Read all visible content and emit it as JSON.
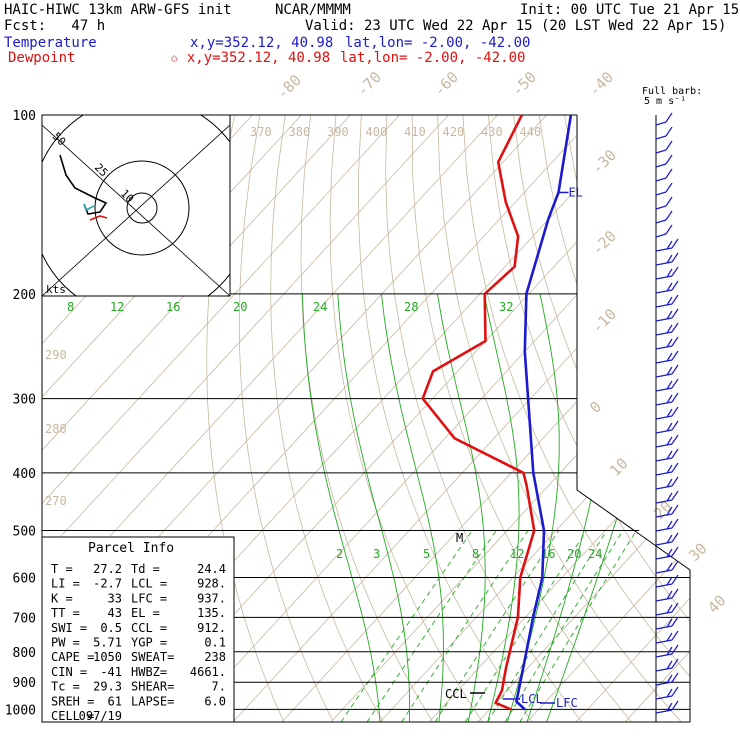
{
  "header": {
    "model": "HAIC-HIWC 13km ARW-GFS init",
    "center": "NCAR/MMMM",
    "init": "Init: 00 UTC Tue 21 Apr 15",
    "fcst": "Fcst:   47 h",
    "valid": "Valid: 23 UTC Wed 22 Apr 15 (20 LST Wed 22 Apr 15)",
    "temperature_label": "Temperature",
    "temperature_xy": "x,y=352.12, 40.98",
    "temperature_latlon": "lat,lon= -2.00, -42.00",
    "dewpoint_label": "Dewpoint",
    "dewpoint_xy": "✩ x,y=352.12, 40.98",
    "dewpoint_latlon": "lat,lon= -2.00, -42.00"
  },
  "barb_legend": [
    "Full barb:",
    "5 m s⁻¹"
  ],
  "hodograph": {
    "unit_label": "kts",
    "ring_labels": [
      "10",
      "25",
      "50"
    ]
  },
  "parcel_info": {
    "title": "Parcel Info",
    "rows": [
      [
        "T  =",
        "27.2",
        "Td =",
        "24.4"
      ],
      [
        "LI =",
        "-2.7",
        "LCL =",
        "928."
      ],
      [
        "K  =",
        "33",
        "LFC =",
        "937."
      ],
      [
        "TT =",
        "43",
        "EL  =",
        "135."
      ],
      [
        "SWI =",
        "0.5",
        "CCL =",
        "912."
      ],
      [
        "PW =",
        "5.71",
        "YGP =",
        "0.1"
      ],
      [
        "CAPE =",
        "1050",
        "SWEAT=",
        "238"
      ],
      [
        "CIN =",
        "-41",
        "HWBZ=",
        "4661."
      ],
      [
        "Tc =",
        "29.3",
        "SHEAR=",
        "7."
      ],
      [
        "SREH =",
        "61",
        "LAPSE=",
        "6.0"
      ],
      [
        "CELL =",
        "097/19",
        "",
        ""
      ]
    ]
  },
  "chart_data": {
    "type": "line",
    "diagram": "skew-T log-P",
    "pressure_ticks": [
      "100",
      "200",
      "300",
      "400",
      "500",
      "600",
      "700",
      "800",
      "900",
      "1000"
    ],
    "isotherm_labels": [
      "-80",
      "-70",
      "-60",
      "-50",
      "-40",
      "-30",
      "-20",
      "-10",
      "0",
      "10",
      "20",
      "30",
      "40"
    ],
    "theta_labels": [
      "370",
      "380",
      "390",
      "400",
      "410",
      "420",
      "430",
      "440"
    ],
    "theta_left_labels": [
      "290",
      "280",
      "270"
    ],
    "mixing_ratio_labels_top": [
      "8",
      "12",
      "16",
      "20",
      "24",
      "28",
      "32"
    ],
    "mixing_ratio_labels_mid": [
      "2",
      "3",
      "5",
      "8",
      "12",
      "16",
      "20",
      "24"
    ],
    "level_labels": [
      "EL",
      "CCL",
      "LCL",
      "LFC",
      "M"
    ],
    "series": [
      {
        "name": "Temperature",
        "color": "#1a1ad0",
        "points": [
          [
            1000,
            27.2
          ],
          [
            970,
            24.0
          ],
          [
            930,
            22.4
          ],
          [
            850,
            19.0
          ],
          [
            700,
            11.6
          ],
          [
            600,
            6.0
          ],
          [
            500,
            -2.5
          ],
          [
            400,
            -15.5
          ],
          [
            300,
            -30.5
          ],
          [
            250,
            -40.0
          ],
          [
            200,
            -50.5
          ],
          [
            150,
            -60.0
          ],
          [
            135,
            -63.0
          ],
          [
            100,
            -75.0
          ]
        ]
      },
      {
        "name": "Dewpoint",
        "color": "#e01010",
        "points": [
          [
            1000,
            24.4
          ],
          [
            975,
            20.0
          ],
          [
            930,
            19.0
          ],
          [
            850,
            15.5
          ],
          [
            700,
            8.5
          ],
          [
            600,
            1.5
          ],
          [
            500,
            -4.5
          ],
          [
            420,
            -14.5
          ],
          [
            400,
            -17.5
          ],
          [
            350,
            -38.0
          ],
          [
            300,
            -52.0
          ],
          [
            270,
            -55.0
          ],
          [
            240,
            -50.0
          ],
          [
            200,
            -59.0
          ],
          [
            180,
            -58.0
          ],
          [
            160,
            -63.0
          ],
          [
            140,
            -72.0
          ],
          [
            120,
            -81.0
          ],
          [
            100,
            -85.0
          ]
        ]
      }
    ]
  },
  "colors": {
    "temperature": "#1a1ad0",
    "dewpoint": "#e01010",
    "isotherm": "#c8b8a0",
    "mixing_ratio": "#22aa22",
    "axis": "#000000"
  }
}
